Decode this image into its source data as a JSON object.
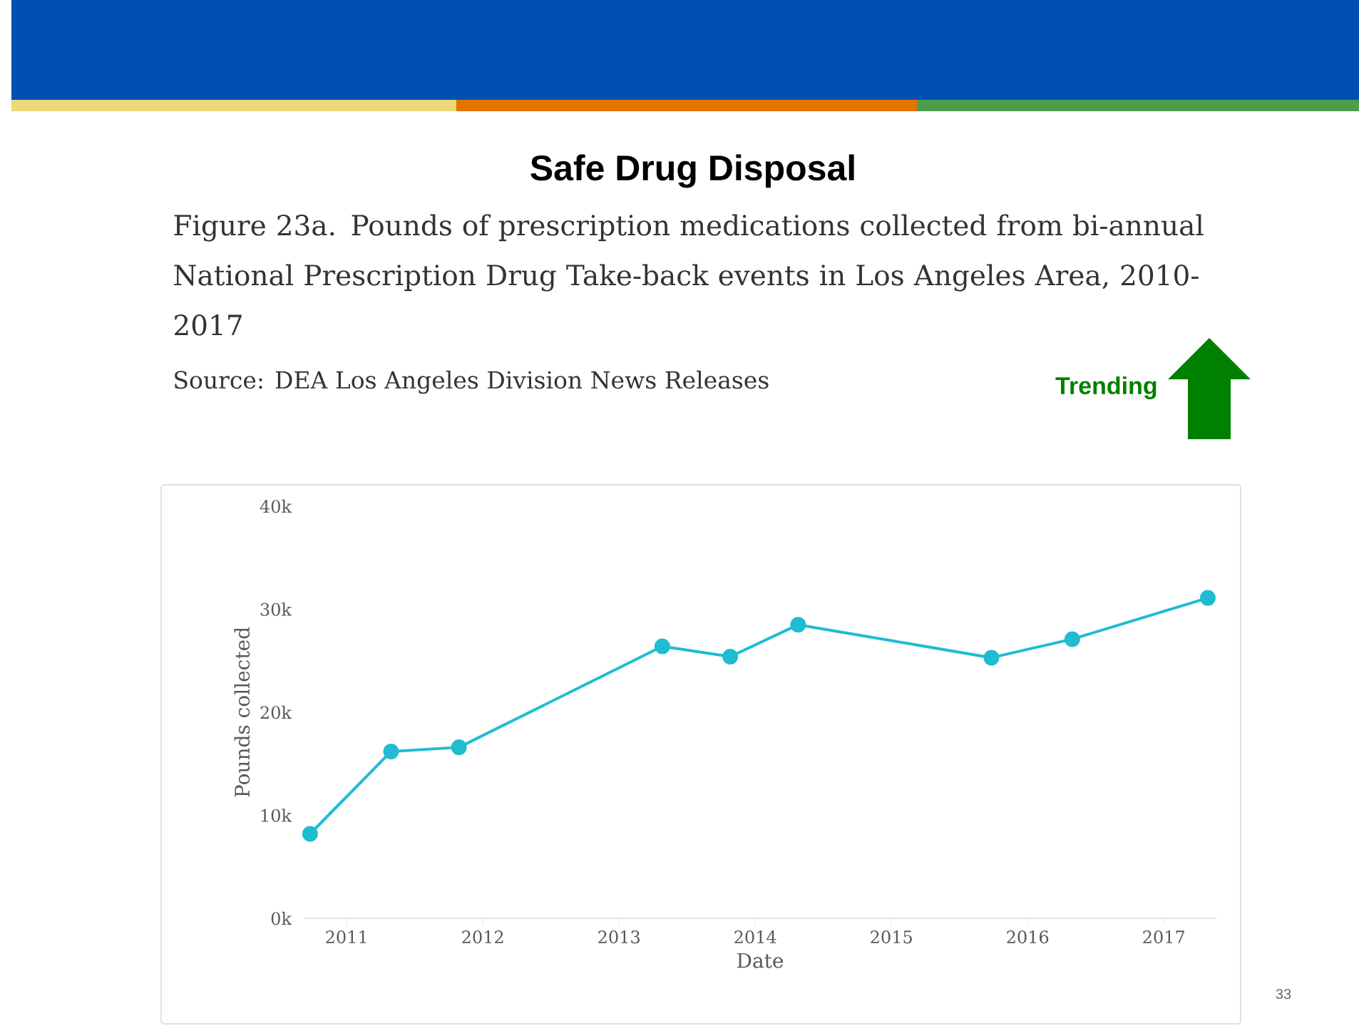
{
  "chart_data": {
    "type": "line",
    "title": "Safe Drug Disposal",
    "subtitle": "Figure 23a. Pounds of prescription medications collected from bi-annual National Prescription Drug Take-back events in Los Angeles Area, 2010-2017",
    "annotations": [
      "Source: DEA Los Angeles Division News Releases",
      "Trending",
      "33"
    ],
    "xlabel": "Date",
    "ylabel": "Pounds collected",
    "x": [
      "2010-09-25",
      "2011-04-30",
      "2011-10-29",
      "2013-04-27",
      "2013-10-26",
      "2014-04-26",
      "2015-09-26",
      "2016-04-30",
      "2017-04-29"
    ],
    "series": [
      {
        "color": "#1fbcd2",
        "values": [
          8200,
          16200,
          16600,
          26400,
          25400,
          28500,
          25300,
          27100,
          31100
        ]
      }
    ],
    "xlim": [
      "2010-09-08",
      "2017-05-22"
    ],
    "xticks": [
      "2011",
      "2012",
      "2013",
      "2014",
      "2015",
      "2016",
      "2017"
    ],
    "ylim": [
      0,
      40000
    ],
    "yticks": [
      {
        "value": 0,
        "label": "0k"
      },
      {
        "value": 10000,
        "label": "10k"
      },
      {
        "value": 20000,
        "label": "20k"
      },
      {
        "value": 30000,
        "label": "30k"
      },
      {
        "value": 40000,
        "label": "40k"
      }
    ],
    "marker": "circle"
  }
}
